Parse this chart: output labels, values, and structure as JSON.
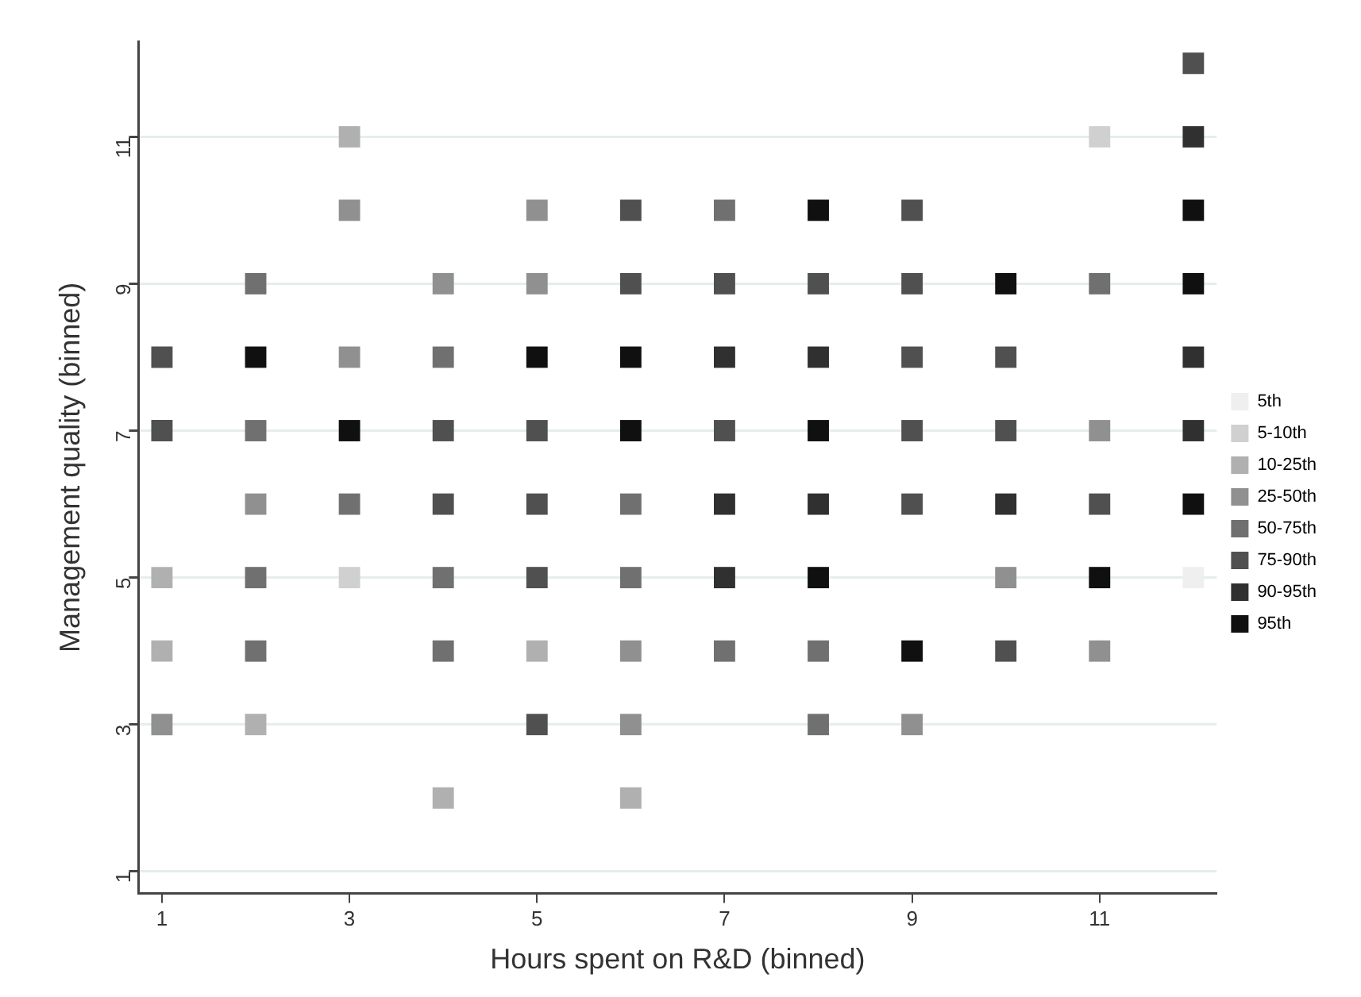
{
  "chart_data": {
    "type": "scatter",
    "xlabel": "Hours spent on R&D (binned)",
    "ylabel": "Management quality (binned)",
    "xlim": [
      0.75,
      12.25
    ],
    "ylim": [
      0.7,
      12.3
    ],
    "xticks": [
      1,
      3,
      5,
      7,
      9,
      11
    ],
    "yticks": [
      1,
      3,
      5,
      7,
      9,
      11
    ],
    "grid": "y",
    "legend": "right",
    "marker": "square",
    "series": [
      {
        "name": "5th",
        "color": "#efefef",
        "x": [
          12
        ],
        "values": [
          5
        ]
      },
      {
        "name": "5-10th",
        "color": "#d0d0d0",
        "x": [
          11,
          3
        ],
        "values": [
          11,
          5
        ]
      },
      {
        "name": "10-25th",
        "color": "#b0b0b0",
        "x": [
          3,
          1,
          1,
          5,
          4,
          6,
          2
        ],
        "values": [
          11,
          5,
          4,
          4,
          2,
          2,
          3
        ]
      },
      {
        "name": "25-50th",
        "color": "#909090",
        "x": [
          3,
          5,
          4,
          5,
          3,
          2,
          1,
          6,
          6,
          11,
          10,
          11,
          9
        ],
        "values": [
          10,
          10,
          9,
          9,
          8,
          6,
          3,
          4,
          3,
          7,
          5,
          4,
          3
        ]
      },
      {
        "name": "50-75th",
        "color": "#707070",
        "x": [
          2,
          4,
          2,
          3,
          6,
          2,
          4,
          6,
          2,
          4,
          7,
          11,
          7,
          8,
          8
        ],
        "values": [
          9,
          8,
          7,
          6,
          6,
          5,
          5,
          5,
          4,
          4,
          10,
          9,
          4,
          4,
          3
        ]
      },
      {
        "name": "75-90th",
        "color": "#505050",
        "x": [
          6,
          6,
          1,
          1,
          4,
          5,
          4,
          5,
          5,
          5,
          12,
          9,
          7,
          8,
          9,
          9,
          10,
          7,
          9,
          10,
          9,
          11,
          10
        ],
        "values": [
          10,
          9,
          8,
          7,
          7,
          7,
          6,
          6,
          5,
          3,
          12,
          10,
          9,
          9,
          9,
          8,
          8,
          7,
          7,
          7,
          6,
          6,
          4
        ]
      },
      {
        "name": "90-95th",
        "color": "#303030",
        "x": [
          12,
          7,
          8,
          12,
          12,
          7,
          8,
          10,
          7
        ],
        "values": [
          11,
          8,
          8,
          8,
          7,
          6,
          6,
          6,
          5
        ]
      },
      {
        "name": "95th",
        "color": "#101010",
        "x": [
          2,
          5,
          6,
          3,
          6,
          8,
          12,
          10,
          12,
          8,
          12,
          8,
          11,
          9
        ],
        "values": [
          8,
          8,
          8,
          7,
          7,
          10,
          10,
          9,
          9,
          7,
          6,
          5,
          5,
          4
        ]
      }
    ]
  }
}
